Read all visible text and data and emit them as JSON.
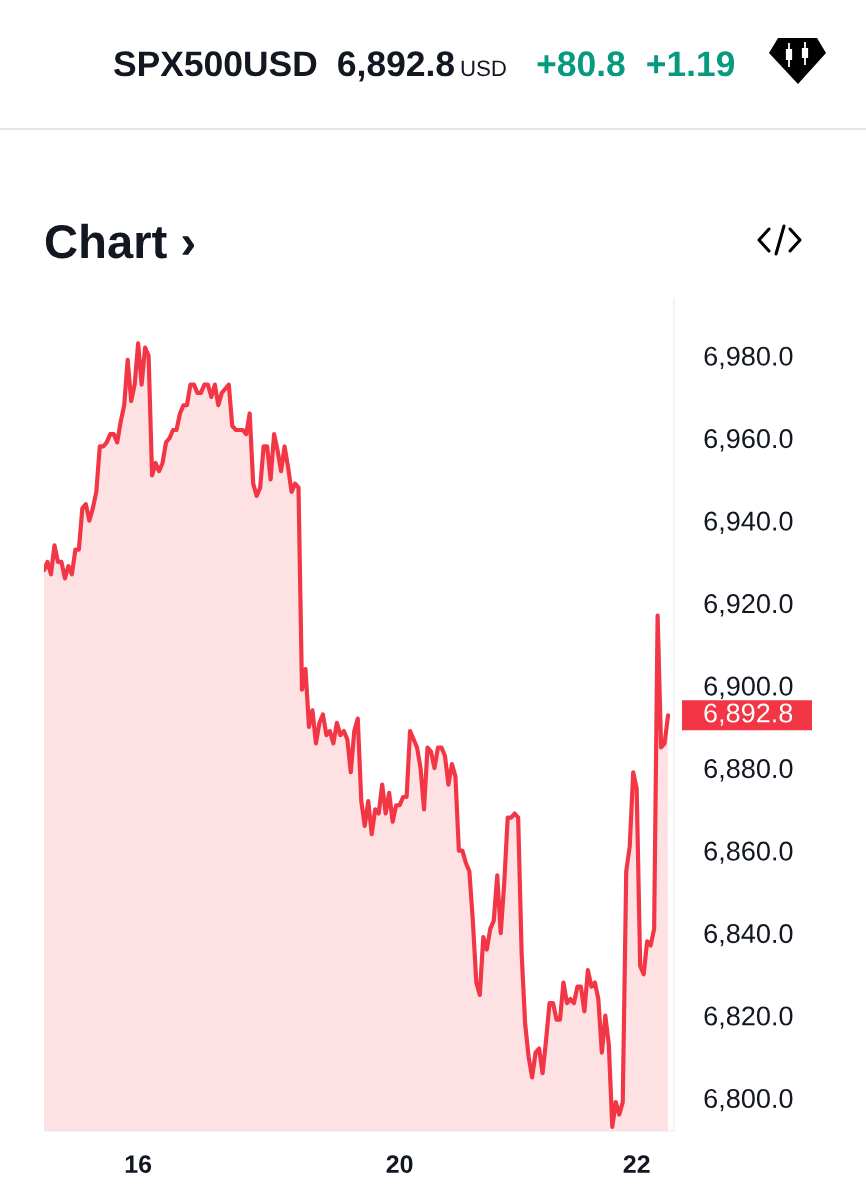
{
  "chart_data": {
    "type": "area",
    "title": "SPX500USD",
    "subtitle": "Chart ›",
    "color": "#f23645",
    "categories": [
      null,
      null,
      null,
      null,
      null,
      null,
      null,
      null,
      null,
      null,
      null,
      null,
      null,
      null,
      null,
      null,
      null,
      null,
      null,
      null,
      null,
      null,
      null,
      null,
      null,
      null,
      null,
      "16",
      null,
      null,
      null,
      null,
      null,
      null,
      null,
      null,
      null,
      null,
      null,
      null,
      null,
      null,
      null,
      null,
      null,
      null,
      null,
      null,
      null,
      null,
      null,
      null,
      null,
      null,
      null,
      null,
      null,
      null,
      null,
      null,
      null,
      null,
      null,
      null,
      null,
      null,
      null,
      null,
      null,
      null,
      null,
      null,
      null,
      null,
      null,
      null,
      null,
      null,
      null,
      null,
      null,
      null,
      null,
      null,
      null,
      null,
      null,
      null,
      null,
      null,
      null,
      null,
      null,
      null,
      null,
      null,
      null,
      null,
      null,
      null,
      null,
      null,
      "20",
      null,
      null,
      null,
      null,
      null,
      null,
      null,
      null,
      null,
      null,
      null,
      null,
      null,
      null,
      null,
      null,
      null,
      null,
      null,
      null,
      null,
      null,
      null,
      null,
      null,
      null,
      null,
      null,
      null,
      null,
      null,
      null,
      null,
      null,
      null,
      null,
      null,
      null,
      null,
      null,
      null,
      null,
      null,
      null,
      null,
      null,
      null,
      null,
      null,
      null,
      null,
      null,
      null,
      null,
      null,
      null,
      null,
      null,
      null,
      null,
      null,
      null,
      null,
      null,
      null,
      null,
      null,
      "22",
      null,
      null,
      null,
      null,
      null,
      null,
      null,
      null,
      null
    ],
    "values": [
      6928,
      6930,
      6927,
      6934,
      6930,
      6930,
      6926,
      6929,
      6927,
      6933,
      6933,
      6943,
      6944,
      6940,
      6943,
      6947,
      6958,
      6958,
      6959,
      6961,
      6961,
      6959,
      6964,
      6968,
      6979,
      6969,
      6973,
      6983,
      6973,
      6982,
      6980,
      6951,
      6954,
      6952,
      6954,
      6959,
      6960,
      6962,
      6962,
      6966,
      6968,
      6968,
      6973,
      6973,
      6971,
      6971,
      6973,
      6973,
      6970,
      6973,
      6968,
      6971,
      6972,
      6973,
      6963,
      6962,
      6962,
      6962,
      6961,
      6966,
      6949,
      6946,
      6948,
      6958,
      6958,
      6950,
      6961,
      6957,
      6952,
      6958,
      6953,
      6947,
      6949,
      6948,
      6899,
      6904,
      6890,
      6894,
      6886,
      6891,
      6893,
      6888,
      6889,
      6886,
      6891,
      6888,
      6889,
      6887,
      6879,
      6889,
      6892,
      6872,
      6866,
      6872,
      6864,
      6870,
      6869,
      6876,
      6869,
      6874,
      6867,
      6871,
      6871,
      6873,
      6873,
      6889,
      6887,
      6885,
      6880,
      6870,
      6885,
      6884,
      6880,
      6885,
      6885,
      6883,
      6876,
      6881,
      6878,
      6860,
      6860,
      6857,
      6855,
      6843,
      6828,
      6825,
      6839,
      6836,
      6841,
      6843,
      6854,
      6840,
      6852,
      6868,
      6868,
      6869,
      6868,
      6835,
      6818,
      6810,
      6805,
      6811,
      6812,
      6806,
      6814,
      6823,
      6823,
      6819,
      6819,
      6828,
      6823,
      6824,
      6823,
      6827,
      6827,
      6821,
      6831,
      6827,
      6828,
      6824,
      6811,
      6820,
      6813,
      6793,
      6799,
      6796,
      6799,
      6855,
      6861,
      6879,
      6875,
      6832,
      6830,
      6838,
      6837,
      6841,
      6917,
      6885,
      6886,
      6892.8
    ],
    "ylim": [
      6792,
      6994
    ],
    "yticks": [
      {
        "value": 6800,
        "label": "6,800.0"
      },
      {
        "value": 6820,
        "label": "6,820.0"
      },
      {
        "value": 6840,
        "label": "6,840.0"
      },
      {
        "value": 6860,
        "label": "6,860.0"
      },
      {
        "value": 6880,
        "label": "6,880.0"
      },
      {
        "value": 6900,
        "label": "6,900.0"
      },
      {
        "value": 6920,
        "label": "6,920.0"
      },
      {
        "value": 6940,
        "label": "6,940.0"
      },
      {
        "value": 6960,
        "label": "6,960.0"
      },
      {
        "value": 6980,
        "label": "6,980.0"
      }
    ],
    "annotations": [
      "6,892.8",
      "USD",
      "+80.8",
      "+1.19",
      "6,892.8"
    ]
  }
}
